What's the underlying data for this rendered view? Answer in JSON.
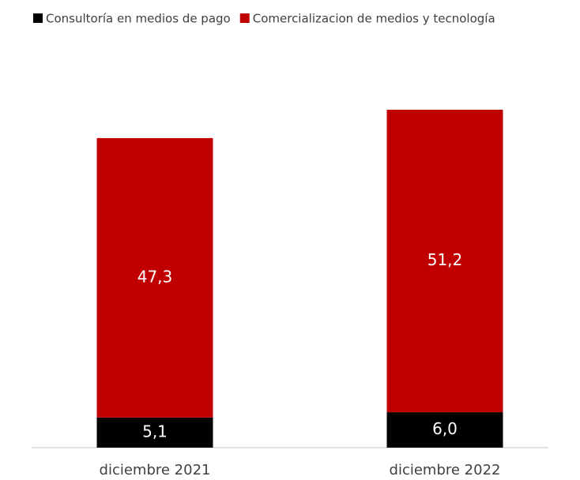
{
  "chart_data": {
    "type": "stacked_bar",
    "categories": [
      "diciembre 2021",
      "diciembre 2022"
    ],
    "series": [
      {
        "name": "Consultoría en medios de pago",
        "color": "#000000",
        "values": [
          5.1,
          6.0
        ],
        "value_labels": [
          "5,1",
          "6,0"
        ]
      },
      {
        "name": "Comercializacion de medios y tecnología",
        "color": "#c00000",
        "values": [
          47.3,
          51.2
        ],
        "value_labels": [
          "47,3",
          "51,2"
        ]
      }
    ],
    "legend": "top"
  }
}
